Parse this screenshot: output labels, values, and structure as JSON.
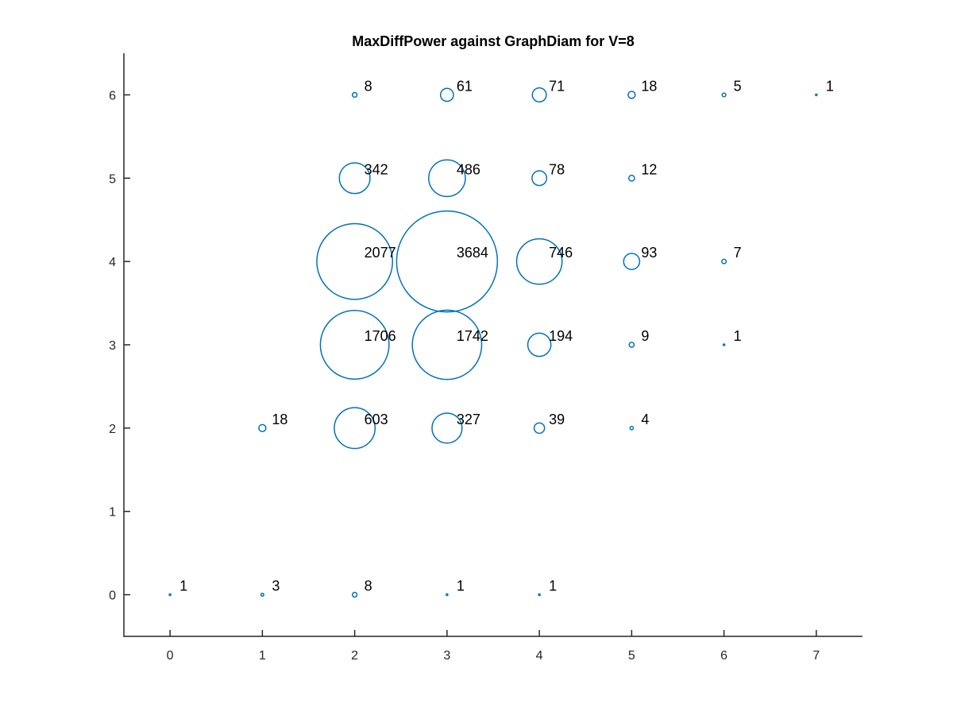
{
  "chart_data": {
    "type": "scatter",
    "title": "MaxDiffPower against GraphDiam for V=8",
    "xlabel": "",
    "ylabel": "",
    "xlim": [
      -0.5,
      7.5
    ],
    "ylim": [
      -0.5,
      6.5
    ],
    "xticks": [
      "0",
      "1",
      "2",
      "3",
      "4",
      "5",
      "6",
      "7"
    ],
    "yticks": [
      "0",
      "1",
      "2",
      "3",
      "4",
      "5",
      "6"
    ],
    "grid": false,
    "marker": "circle, area proportional to count",
    "color": "#0072BD",
    "points": [
      {
        "x": 0,
        "y": 0,
        "count": 1
      },
      {
        "x": 1,
        "y": 0,
        "count": 3
      },
      {
        "x": 2,
        "y": 0,
        "count": 8
      },
      {
        "x": 3,
        "y": 0,
        "count": 1
      },
      {
        "x": 4,
        "y": 0,
        "count": 1
      },
      {
        "x": 1,
        "y": 2,
        "count": 18
      },
      {
        "x": 2,
        "y": 2,
        "count": 603
      },
      {
        "x": 3,
        "y": 2,
        "count": 327
      },
      {
        "x": 4,
        "y": 2,
        "count": 39
      },
      {
        "x": 5,
        "y": 2,
        "count": 4
      },
      {
        "x": 2,
        "y": 3,
        "count": 1706
      },
      {
        "x": 3,
        "y": 3,
        "count": 1742
      },
      {
        "x": 4,
        "y": 3,
        "count": 194
      },
      {
        "x": 5,
        "y": 3,
        "count": 9
      },
      {
        "x": 6,
        "y": 3,
        "count": 1
      },
      {
        "x": 2,
        "y": 4,
        "count": 2077
      },
      {
        "x": 3,
        "y": 4,
        "count": 3684
      },
      {
        "x": 4,
        "y": 4,
        "count": 746
      },
      {
        "x": 5,
        "y": 4,
        "count": 93
      },
      {
        "x": 6,
        "y": 4,
        "count": 7
      },
      {
        "x": 2,
        "y": 5,
        "count": 342
      },
      {
        "x": 3,
        "y": 5,
        "count": 486
      },
      {
        "x": 4,
        "y": 5,
        "count": 78
      },
      {
        "x": 5,
        "y": 5,
        "count": 12
      },
      {
        "x": 2,
        "y": 6,
        "count": 8
      },
      {
        "x": 3,
        "y": 6,
        "count": 61
      },
      {
        "x": 4,
        "y": 6,
        "count": 71
      },
      {
        "x": 5,
        "y": 6,
        "count": 18
      },
      {
        "x": 6,
        "y": 6,
        "count": 5
      },
      {
        "x": 7,
        "y": 6,
        "count": 1
      }
    ]
  }
}
